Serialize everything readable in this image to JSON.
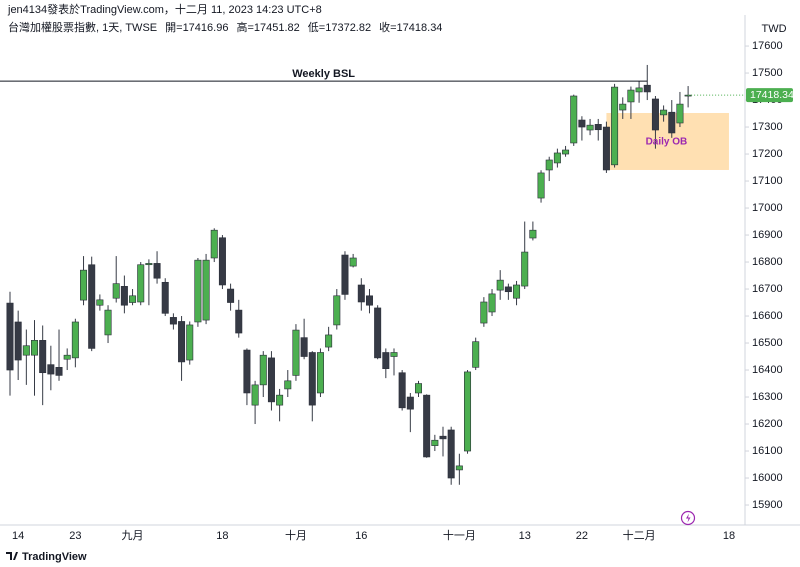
{
  "byline": "jen4134發表於TradingView.com，十二月 11, 2023 14:23 UTC+8",
  "footer": "TradingView",
  "chart_data": {
    "type": "candlestick",
    "header": {
      "symbol": "台灣加權股票指數, 1天, TWSE",
      "fields": [
        {
          "label": "開=",
          "path": "open"
        },
        {
          "label": "高=",
          "path": "high"
        },
        {
          "label": "低=",
          "path": "low"
        },
        {
          "label": "收=",
          "path": "close"
        }
      ]
    },
    "y_unit": "TWD",
    "categories": [
      null,
      "14",
      null,
      null,
      null,
      null,
      null,
      null,
      "23",
      null,
      null,
      null,
      null,
      null,
      null,
      "九月",
      null,
      null,
      null,
      null,
      null,
      null,
      null,
      null,
      null,
      null,
      "18",
      null,
      null,
      null,
      null,
      null,
      null,
      null,
      null,
      "十月",
      null,
      null,
      null,
      null,
      null,
      null,
      null,
      "16",
      null,
      null,
      null,
      null,
      null,
      null,
      null,
      null,
      null,
      null,
      null,
      "十一月",
      null,
      null,
      null,
      null,
      null,
      null,
      null,
      "13",
      null,
      null,
      null,
      null,
      null,
      null,
      "22",
      null,
      null,
      null,
      null,
      null,
      null,
      "十二月",
      null,
      null,
      null,
      null,
      null,
      null,
      null,
      null,
      null,
      null,
      "18",
      null
    ],
    "open": [
      16648,
      16578,
      16455,
      16455,
      16510,
      16420,
      16410,
      16440,
      16445,
      16659,
      16790,
      16640,
      16530,
      16666,
      16710,
      16650,
      16652,
      16790,
      16795,
      16725,
      16595,
      16580,
      16437,
      16578,
      16585,
      16815,
      16890,
      16700,
      16622,
      16474,
      16270,
      16345,
      16445,
      16270,
      16330,
      16380,
      16520,
      16465,
      16315,
      16485,
      16567,
      16826,
      16785,
      16715,
      16675,
      16630,
      16465,
      16450,
      16390,
      16300,
      16315,
      16307,
      16120,
      16155,
      16178,
      16030,
      16100,
      16410,
      16574,
      16615,
      16696,
      16708,
      16666,
      16711,
      16889,
      17037,
      17141,
      17167,
      17200,
      17241,
      17326,
      17289,
      17310,
      17300,
      17160,
      17363,
      17393,
      17430,
      17455,
      17404,
      17345,
      17355,
      17315,
      17416.96,
      null,
      null,
      null,
      null,
      null,
      null
    ],
    "high": [
      16690,
      16620,
      16550,
      16585,
      16565,
      16490,
      16550,
      16480,
      16590,
      16822,
      16820,
      16680,
      16640,
      16822,
      16750,
      16700,
      16800,
      16810,
      16840,
      16740,
      16610,
      16600,
      16580,
      16815,
      16830,
      16925,
      16900,
      16720,
      16660,
      16480,
      16360,
      16470,
      16470,
      16330,
      16400,
      16570,
      16590,
      16470,
      16480,
      16560,
      16700,
      16840,
      16830,
      16740,
      16700,
      16640,
      16480,
      16480,
      16400,
      16315,
      16360,
      16310,
      16160,
      16190,
      16190,
      16090,
      16400,
      16520,
      16670,
      16700,
      16770,
      16720,
      16730,
      16950,
      16950,
      17140,
      17190,
      17220,
      17230,
      17420,
      17340,
      17330,
      17330,
      17320,
      17460,
      17410,
      17450,
      17470,
      17530,
      17415,
      17380,
      17400,
      17430,
      17451.82,
      null,
      null,
      null,
      null,
      null,
      null
    ],
    "low": [
      16305,
      16363,
      16345,
      16305,
      16270,
      16325,
      16360,
      16400,
      16410,
      16640,
      16470,
      16620,
      16500,
      16650,
      16610,
      16640,
      16640,
      16640,
      16720,
      16600,
      16550,
      16360,
      16420,
      16560,
      16570,
      16800,
      16700,
      16620,
      16520,
      16270,
      16200,
      16300,
      16250,
      16210,
      16300,
      16360,
      16440,
      16210,
      16300,
      16470,
      16550,
      16660,
      16780,
      16620,
      16610,
      16440,
      16370,
      16380,
      16250,
      16170,
      16300,
      16075,
      16100,
      16080,
      15975,
      15975,
      16090,
      16400,
      16560,
      16600,
      16660,
      16660,
      16640,
      16700,
      16880,
      17020,
      17100,
      17150,
      17190,
      17230,
      17250,
      17270,
      17250,
      17130,
      17150,
      17330,
      17330,
      17390,
      17400,
      17220,
      17320,
      17260,
      17300,
      17372.82,
      null,
      null,
      null,
      null,
      null,
      null
    ],
    "close": [
      16400,
      16437,
      16490,
      16510,
      16390,
      16385,
      16380,
      16455,
      16578,
      16770,
      16480,
      16660,
      16622,
      16720,
      16640,
      16675,
      16790,
      16795,
      16740,
      16610,
      16570,
      16430,
      16567,
      16807,
      16807,
      16918,
      16715,
      16650,
      16537,
      16315,
      16345,
      16455,
      16282,
      16307,
      16360,
      16548,
      16450,
      16270,
      16465,
      16530,
      16675,
      16680,
      16815,
      16652,
      16640,
      16445,
      16405,
      16465,
      16260,
      16255,
      16350,
      16078,
      16140,
      16145,
      16000,
      16045,
      16393,
      16505,
      16652,
      16682,
      16733,
      16690,
      16715,
      16837,
      16918,
      17130,
      17178,
      17204,
      17215,
      17415,
      17300,
      17307,
      17290,
      17141,
      17448,
      17385,
      17437,
      17445,
      17430,
      17289,
      17363,
      17278,
      17385,
      17418.34,
      null,
      null,
      null,
      null,
      null,
      null
    ],
    "up_color": "#4caf50",
    "down_color": "#363a45",
    "ylim": [
      15826,
      17715
    ],
    "yticks": [
      15900,
      16000,
      16100,
      16200,
      16300,
      16400,
      16500,
      16600,
      16700,
      16800,
      16900,
      17000,
      17100,
      17200,
      17300,
      17400,
      17500,
      17600
    ],
    "annotations": [
      {
        "kind": "line",
        "text": "Weekly BSL",
        "y": 17470,
        "x": [
          0,
          78
        ],
        "color": "#131722"
      },
      {
        "kind": "zone",
        "text": "Daily OB",
        "y": [
          17141,
          17352
        ],
        "x": [
          73,
          88
        ],
        "color": "#ffe0b2",
        "text_color": "#9c27b0"
      }
    ]
  }
}
